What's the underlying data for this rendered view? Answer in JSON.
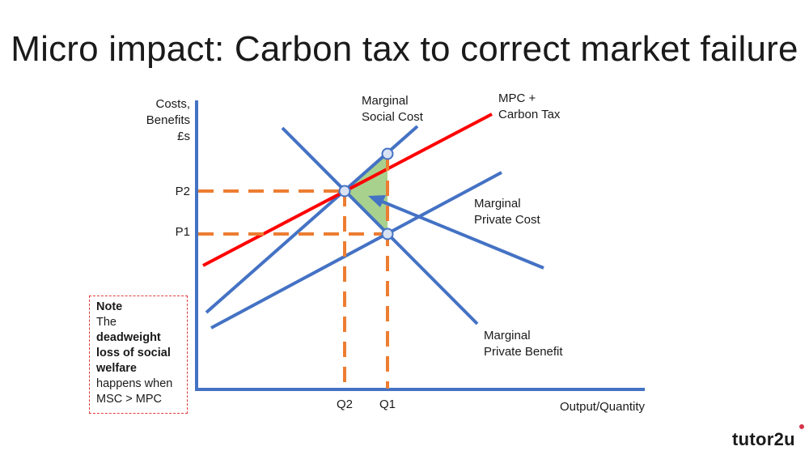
{
  "title": "Micro impact: Carbon tax to correct market failure",
  "axes": {
    "y_label_lines": [
      "Costs,",
      "Benefits",
      "£s"
    ],
    "x_label": "Output/Quantity"
  },
  "ticks": {
    "p2": "P2",
    "p1": "P1",
    "q2": "Q2",
    "q1": "Q1"
  },
  "curves": {
    "msc": {
      "lines": [
        "Marginal",
        "Social Cost"
      ]
    },
    "mpc_tax": {
      "lines": [
        "MPC +",
        "Carbon Tax"
      ]
    },
    "mpc": {
      "lines": [
        "Marginal",
        "Private Cost"
      ]
    },
    "mpb": {
      "lines": [
        "Marginal",
        "Private Benefit"
      ]
    }
  },
  "note": {
    "heading": "Note",
    "line1": "The",
    "bold": "deadweight loss of social welfare",
    "rest": "happens when MSC > MPC"
  },
  "brand": "tutor2u",
  "colors": {
    "blue": "#4472c4",
    "red": "#ff0000",
    "orange": "#ed7d31",
    "green": "#a9d18e",
    "dot_fill": "#d9e2f3",
    "note_border": "#e23b3b"
  }
}
